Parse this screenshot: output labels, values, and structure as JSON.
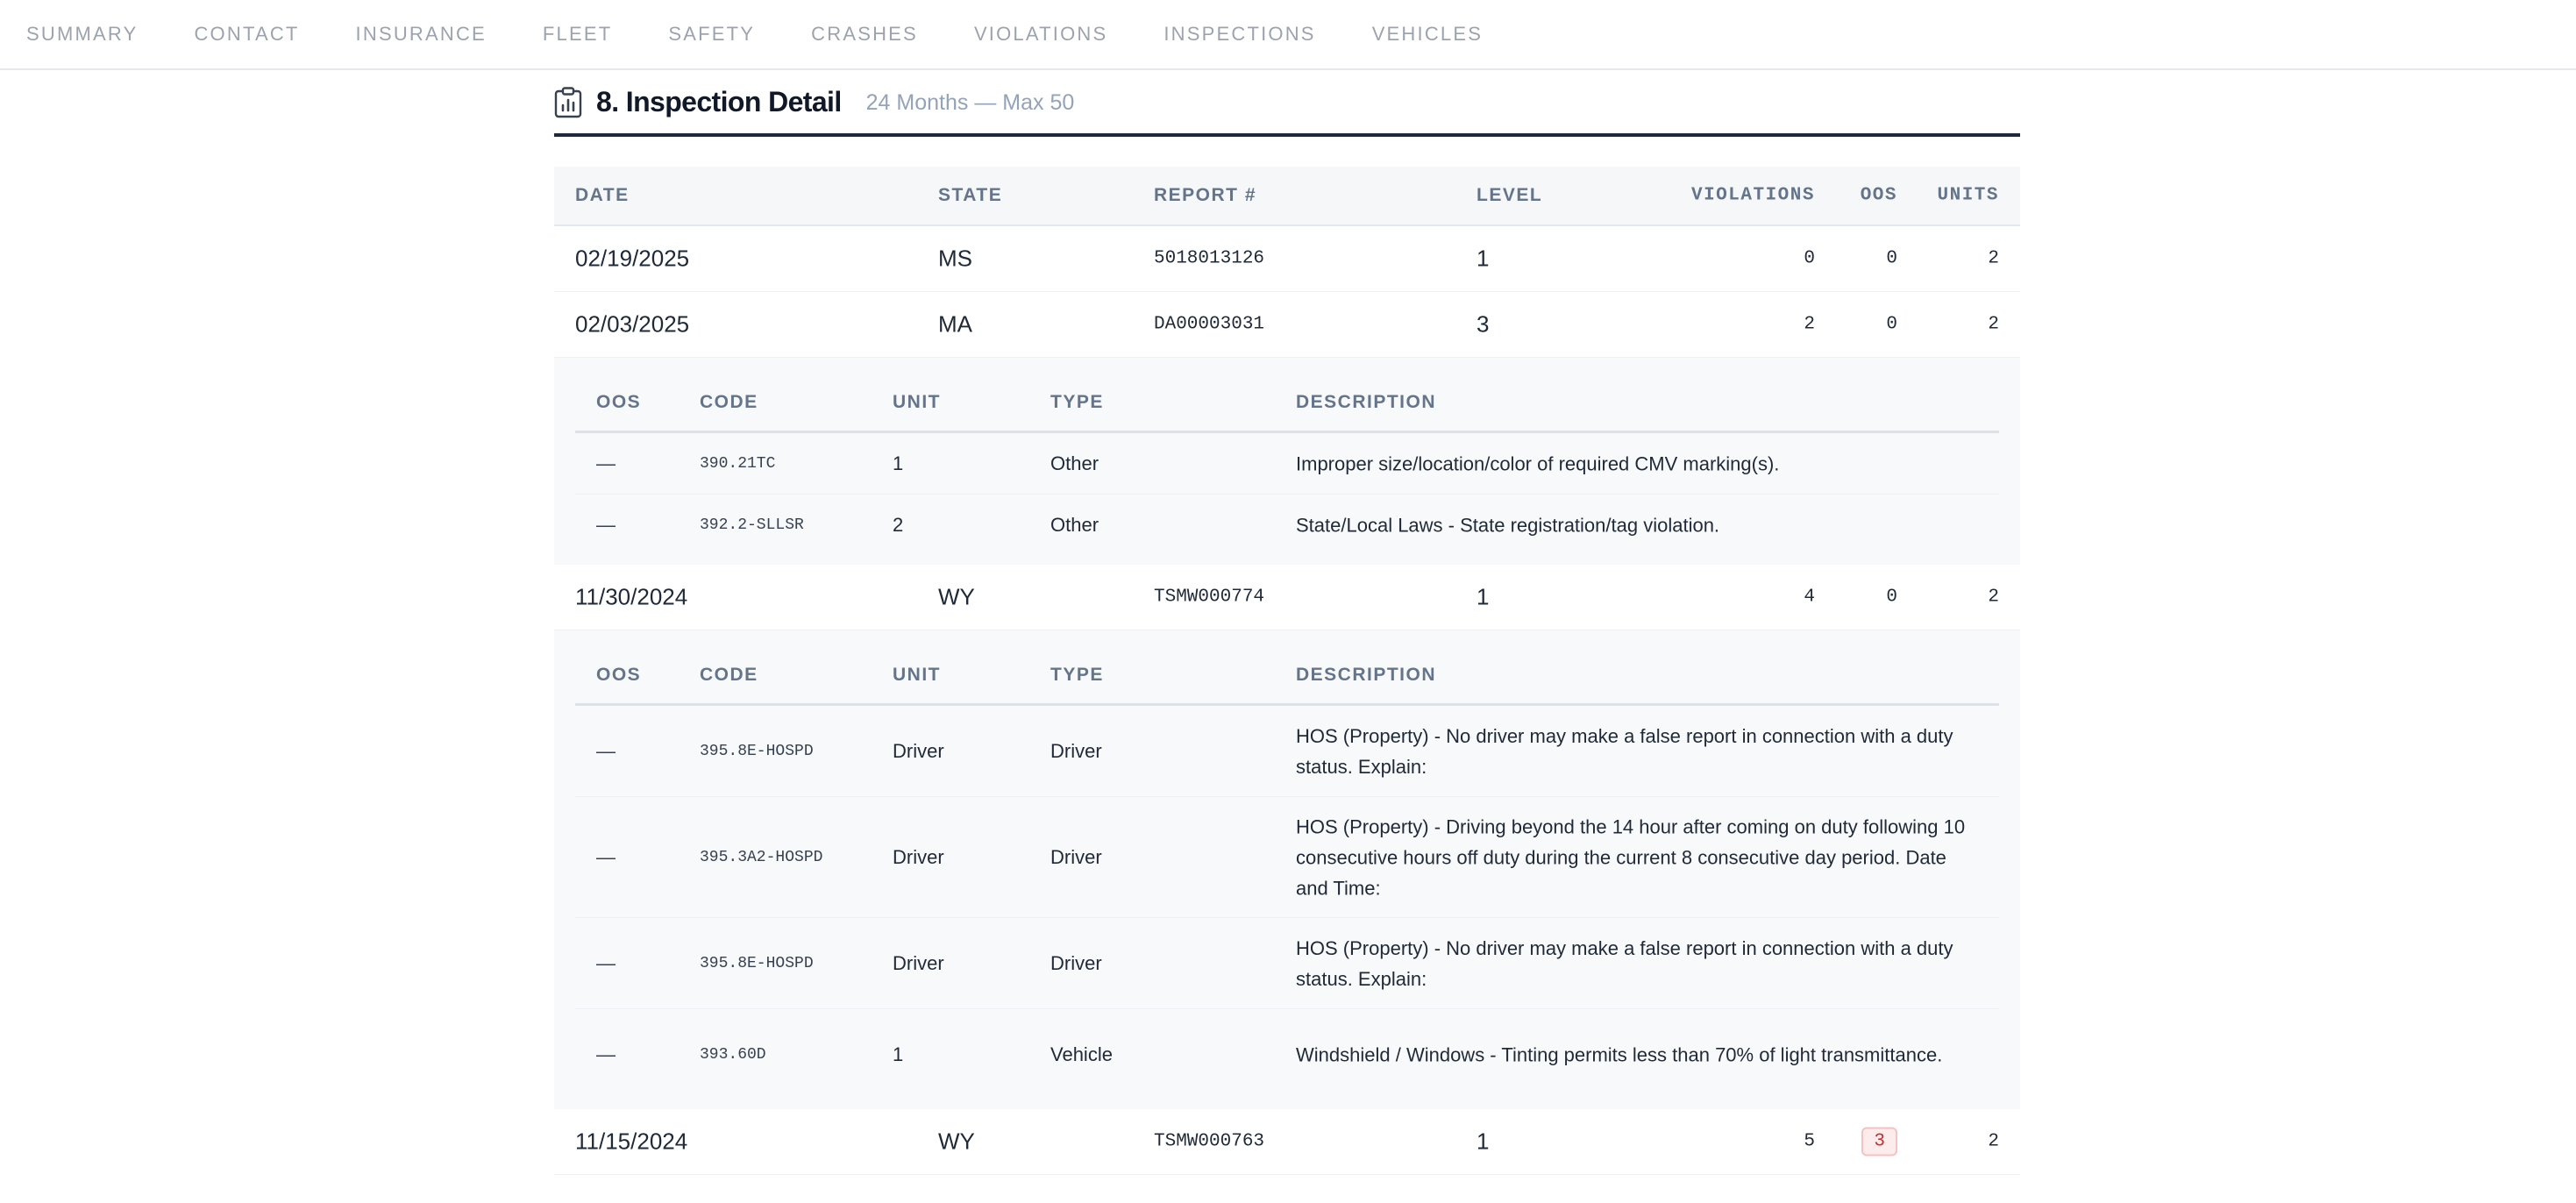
{
  "nav": {
    "items": [
      "SUMMARY",
      "CONTACT",
      "INSURANCE",
      "FLEET",
      "SAFETY",
      "CRASHES",
      "VIOLATIONS",
      "INSPECTIONS",
      "VEHICLES"
    ]
  },
  "section": {
    "icon": "clipboard-chart-icon",
    "title": "8. Inspection Detail",
    "subtitle": "24 Months — Max 50"
  },
  "table": {
    "headers": {
      "date": "DATE",
      "state": "STATE",
      "report": "REPORT #",
      "level": "LEVEL",
      "violations": "VIOLATIONS",
      "oos": "OOS",
      "units": "UNITS"
    },
    "detail_headers": {
      "oos": "OOS",
      "code": "CODE",
      "unit": "UNIT",
      "type": "TYPE",
      "description": "DESCRIPTION"
    },
    "rows": [
      {
        "date": "02/19/2025",
        "state": "MS",
        "report": "5018013126",
        "level": "1",
        "violations": "0",
        "oos": "0",
        "units": "2",
        "oos_highlight": false,
        "details": []
      },
      {
        "date": "02/03/2025",
        "state": "MA",
        "report": "DA00003031",
        "level": "3",
        "violations": "2",
        "oos": "0",
        "units": "2",
        "oos_highlight": false,
        "details": [
          {
            "oos": "—",
            "code": "390.21TC",
            "unit": "1",
            "type": "Other",
            "description": "Improper size/location/color of required CMV marking(s)."
          },
          {
            "oos": "—",
            "code": "392.2-SLLSR",
            "unit": "2",
            "type": "Other",
            "description": "State/Local Laws - State registration/tag violation."
          }
        ]
      },
      {
        "date": "11/30/2024",
        "state": "WY",
        "report": "TSMW000774",
        "level": "1",
        "violations": "4",
        "oos": "0",
        "units": "2",
        "oos_highlight": false,
        "details": [
          {
            "oos": "—",
            "code": "395.8E-HOSPD",
            "unit": "Driver",
            "type": "Driver",
            "description": "HOS (Property) - No driver may make a false report in connection with a duty status. Explain:"
          },
          {
            "oos": "—",
            "code": "395.3A2-HOSPD",
            "unit": "Driver",
            "type": "Driver",
            "description": "HOS (Property) - Driving beyond the 14 hour after coming on duty following 10 consecutive hours off duty during the current 8 consecutive day period. Date and Time:"
          },
          {
            "oos": "—",
            "code": "395.8E-HOSPD",
            "unit": "Driver",
            "type": "Driver",
            "description": "HOS (Property) - No driver may make a false report in connection with a duty status. Explain:"
          },
          {
            "oos": "—",
            "code": "393.60D",
            "unit": "1",
            "type": "Vehicle",
            "description": "Windshield / Windows - Tinting permits less than 70% of light transmittance."
          }
        ]
      },
      {
        "date": "11/15/2024",
        "state": "WY",
        "report": "TSMW000763",
        "level": "1",
        "violations": "5",
        "oos": "3",
        "units": "2",
        "oos_highlight": true,
        "details": []
      }
    ]
  }
}
